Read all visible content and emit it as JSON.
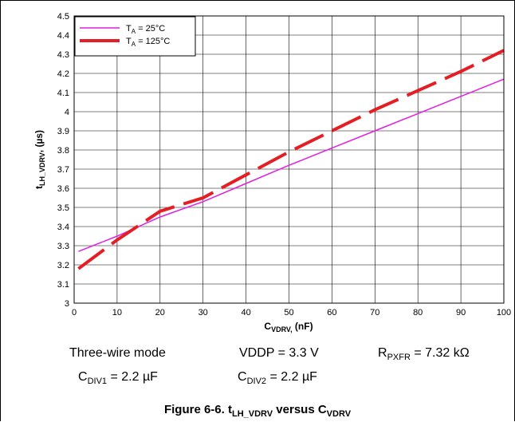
{
  "chart_data": {
    "type": "line",
    "title": "",
    "xlabel": {
      "main": "C",
      "sub": "VDRV,",
      "unit": " (nF)"
    },
    "ylabel": {
      "main": "t",
      "sub": "LH_VDRV",
      "unit": ", (µs)"
    },
    "xlim": [
      0,
      100
    ],
    "ylim": [
      3,
      4.5
    ],
    "xticks": [
      0,
      10,
      20,
      30,
      40,
      50,
      60,
      70,
      80,
      90,
      100
    ],
    "yticks": [
      "3",
      "3.1",
      "3.2",
      "3.3",
      "3.4",
      "3.5",
      "3.6",
      "3.7",
      "3.8",
      "3.9",
      "4",
      "4.1",
      "4.2",
      "4.3",
      "4.4",
      "4.5"
    ],
    "grid": true,
    "legend_position": "top-left",
    "series": [
      {
        "name": {
          "main": "T",
          "sub": "A",
          "rest": " = 25°C"
        },
        "color": "#e020e0",
        "style": "solid",
        "x": [
          1,
          10,
          20,
          30,
          40,
          50,
          60,
          70,
          80,
          90,
          100
        ],
        "y": [
          3.27,
          3.35,
          3.45,
          3.53,
          3.625,
          3.72,
          3.81,
          3.9,
          3.99,
          4.08,
          4.17
        ]
      },
      {
        "name": {
          "main": "T",
          "sub": "A",
          "rest": " = 125°C"
        },
        "color": "#e31e24",
        "style": "dashed",
        "x": [
          1,
          10,
          20,
          30,
          40,
          50,
          60,
          70,
          80,
          90,
          100
        ],
        "y": [
          3.18,
          3.33,
          3.48,
          3.55,
          3.67,
          3.79,
          3.9,
          4.01,
          4.11,
          4.21,
          4.32
        ]
      }
    ]
  },
  "conditions": {
    "mode": "Three-wire mode",
    "vddp": "VDDP = 3.3 V",
    "rpxfr": {
      "main": "R",
      "sub": "PXFR",
      "rest": " = 7.32 kΩ"
    },
    "cdiv1": {
      "main": "C",
      "sub": "DIV1",
      "rest": " = 2.2 µF"
    },
    "cdiv2": {
      "main": "C",
      "sub": "DIV2",
      "rest": " = 2.2 µF"
    }
  },
  "caption": {
    "prefix": "Figure 6-6. t",
    "sub1": "LH_VDRV",
    "mid": " versus C",
    "sub2": "VDRV"
  }
}
